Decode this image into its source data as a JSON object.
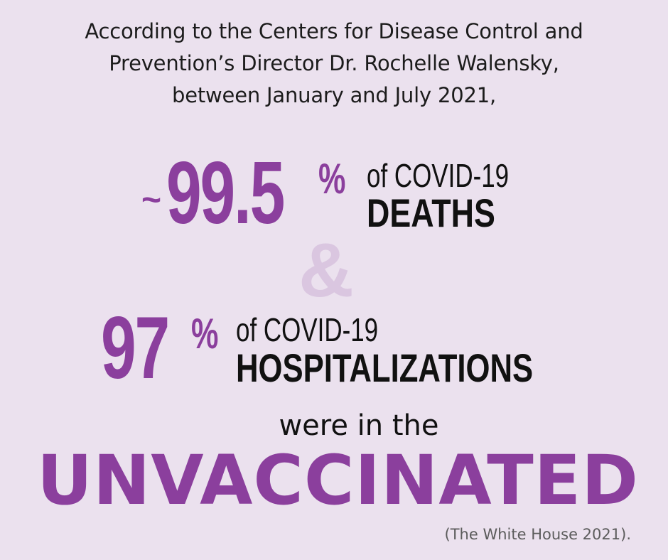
{
  "intro": {
    "line1": "According to the Centers for Disease Control and",
    "line2": "Prevention’s Director Dr. Rochelle Walensky,",
    "line3": "between January and July 2021,"
  },
  "stat1": {
    "prefix": "~",
    "value": "99.5",
    "unit": "%",
    "of_text": "of COVID-19",
    "label": "DEATHS"
  },
  "connector": "&",
  "stat2": {
    "value": "97",
    "unit": "%",
    "of_text": "of COVID-19",
    "label": "HOSPITALIZATIONS"
  },
  "were_text": "were in the",
  "highlight": "UNVACCINATED",
  "citation": "(The White House 2021).",
  "colors": {
    "background": "#ebe1ee",
    "accent": "#8b3f9d",
    "ampersand": "#dac6e0",
    "text": "#111111"
  }
}
